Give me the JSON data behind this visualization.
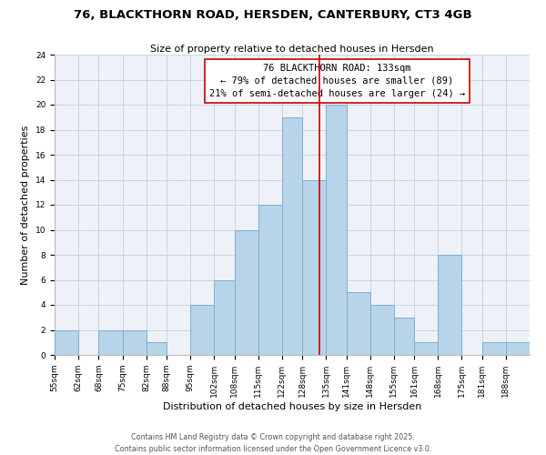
{
  "title": "76, BLACKTHORN ROAD, HERSDEN, CANTERBURY, CT3 4GB",
  "subtitle": "Size of property relative to detached houses in Hersden",
  "xlabel": "Distribution of detached houses by size in Hersden",
  "ylabel": "Number of detached properties",
  "bin_labels": [
    "55sqm",
    "62sqm",
    "68sqm",
    "75sqm",
    "82sqm",
    "88sqm",
    "95sqm",
    "102sqm",
    "108sqm",
    "115sqm",
    "122sqm",
    "128sqm",
    "135sqm",
    "141sqm",
    "148sqm",
    "155sqm",
    "161sqm",
    "168sqm",
    "175sqm",
    "181sqm",
    "188sqm"
  ],
  "bin_edges": [
    55,
    62,
    68,
    75,
    82,
    88,
    95,
    102,
    108,
    115,
    122,
    128,
    135,
    141,
    148,
    155,
    161,
    168,
    175,
    181,
    188,
    195
  ],
  "counts": [
    2,
    0,
    2,
    2,
    1,
    0,
    4,
    6,
    10,
    12,
    19,
    14,
    20,
    5,
    4,
    3,
    1,
    8,
    0,
    1,
    1
  ],
  "bar_color": "#b8d4e8",
  "bar_edge_color": "#7aafd4",
  "property_value": 133,
  "vline_color": "#cc0000",
  "annotation_text": "76 BLACKTHORN ROAD: 133sqm\n← 79% of detached houses are smaller (89)\n21% of semi-detached houses are larger (24) →",
  "annotation_box_edgecolor": "#cc0000",
  "ylim": [
    0,
    24
  ],
  "yticks": [
    0,
    2,
    4,
    6,
    8,
    10,
    12,
    14,
    16,
    18,
    20,
    22,
    24
  ],
  "footer_text": "Contains HM Land Registry data © Crown copyright and database right 2025.\nContains public sector information licensed under the Open Government Licence v3.0.",
  "background_color": "#eef2f8",
  "grid_color": "#c8d4e4",
  "title_fontsize": 9.5,
  "subtitle_fontsize": 8,
  "axis_label_fontsize": 8,
  "tick_fontsize": 6.5,
  "annotation_fontsize": 7.5,
  "footer_fontsize": 5.8
}
